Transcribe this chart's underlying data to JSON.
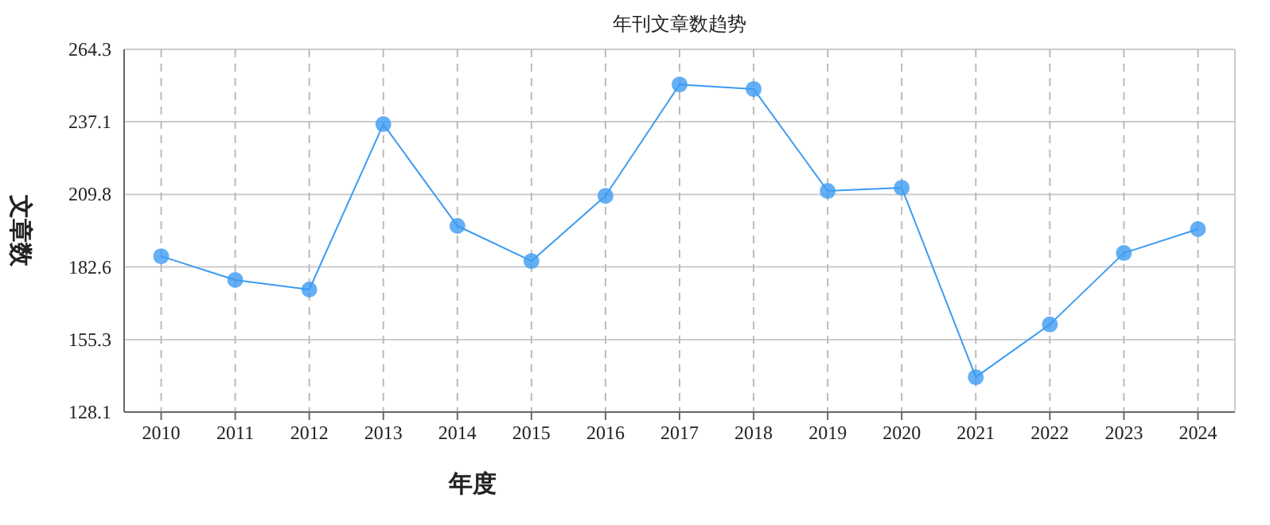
{
  "chart_data": {
    "type": "line",
    "title": "年刊文章数趋势",
    "xlabel": "年度",
    "ylabel": "文章数",
    "categories": [
      "2010",
      "2011",
      "2012",
      "2013",
      "2014",
      "2015",
      "2016",
      "2017",
      "2018",
      "2019",
      "2020",
      "2021",
      "2022",
      "2023",
      "2024"
    ],
    "series": [
      {
        "color": "#3d9bf2",
        "values": [
          186.6,
          177.7,
          174.1,
          236.2,
          198.0,
          184.8,
          209.3,
          251.1,
          249.4,
          211.1,
          212.3,
          141.2,
          161.0,
          187.8,
          196.8
        ]
      }
    ],
    "ylim": [
      128.1,
      264.3
    ],
    "yticks": [
      128.1,
      155.3,
      182.6,
      209.8,
      237.1,
      264.3
    ],
    "grid": true,
    "marker": "circle",
    "line_style": "solid"
  }
}
